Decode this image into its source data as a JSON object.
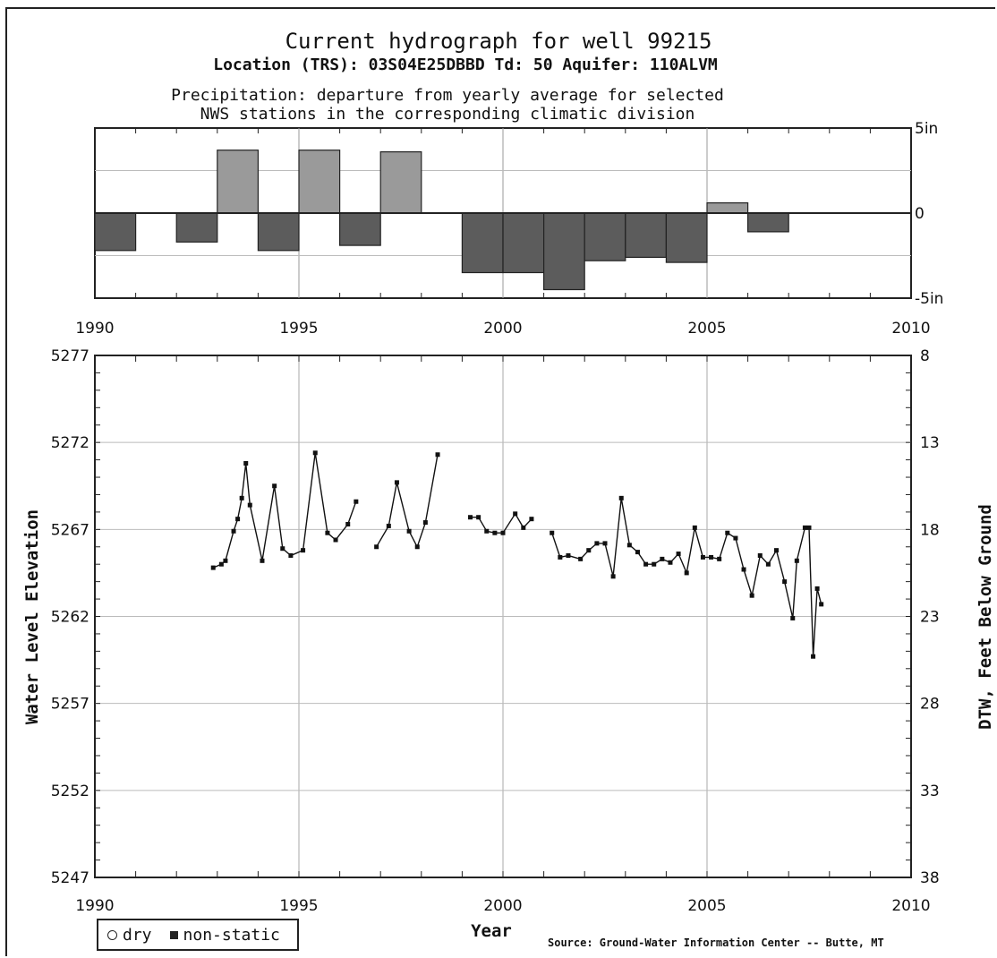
{
  "header": {
    "title": "Current hydrograph for well 99215",
    "subtitle": "Location (TRS): 03S04E25DBBD Td: 50 Aquifer: 110ALVM",
    "precip_line1": "Precipitation: departure from yearly average for selected",
    "precip_line2": "NWS stations in the corresponding climatic division"
  },
  "legend": {
    "dry": "dry",
    "nonstatic": "non-static"
  },
  "source": "Source: Ground-Water Information Center -- Butte, MT",
  "chart_data": [
    {
      "type": "bar",
      "x_ticks": [
        "1990",
        "1995",
        "2000",
        "2005",
        "2010"
      ],
      "y_ticks": [
        "5in",
        "0",
        "-5in"
      ],
      "ylim": [
        -5,
        5
      ],
      "xlim": [
        1990,
        2010
      ],
      "grid": true,
      "bars": [
        {
          "year": 1990,
          "value": -2.2
        },
        {
          "year": 1992,
          "value": -1.7
        },
        {
          "year": 1993,
          "value": 3.7
        },
        {
          "year": 1994,
          "value": -2.2
        },
        {
          "year": 1995,
          "value": 3.7
        },
        {
          "year": 1996,
          "value": -1.9
        },
        {
          "year": 1997,
          "value": 3.6
        },
        {
          "year": 1999,
          "value": -3.5
        },
        {
          "year": 2000,
          "value": -3.5
        },
        {
          "year": 2001,
          "value": -4.5
        },
        {
          "year": 2002,
          "value": -2.8
        },
        {
          "year": 2003,
          "value": -2.6
        },
        {
          "year": 2004,
          "value": -2.9
        },
        {
          "year": 2005,
          "value": 0.6
        },
        {
          "year": 2006,
          "value": -1.1
        }
      ]
    },
    {
      "type": "line",
      "xlabel": "Year",
      "ylabel": "Water Level Elevation",
      "y2label": "DTW, Feet Below Ground",
      "x_ticks": [
        "1990",
        "1995",
        "2000",
        "2005",
        "2010"
      ],
      "y_ticks": [
        "5277",
        "5272",
        "5267",
        "5262",
        "5257",
        "5252",
        "5247"
      ],
      "y2_ticks": [
        "8",
        "13",
        "18",
        "23",
        "28",
        "33",
        "38"
      ],
      "xlim": [
        1990,
        2010
      ],
      "ylim": [
        5247,
        5277
      ],
      "grid": true,
      "series": [
        {
          "segment": 1,
          "points": [
            [
              1992.9,
              5264.8
            ],
            [
              1993.1,
              5265.0
            ],
            [
              1993.2,
              5265.2
            ],
            [
              1993.4,
              5266.9
            ],
            [
              1993.5,
              5267.6
            ],
            [
              1993.6,
              5268.8
            ],
            [
              1993.7,
              5270.8
            ],
            [
              1993.8,
              5268.4
            ],
            [
              1994.1,
              5265.2
            ],
            [
              1994.4,
              5269.5
            ],
            [
              1994.6,
              5265.9
            ],
            [
              1994.8,
              5265.5
            ],
            [
              1995.1,
              5265.8
            ],
            [
              1995.4,
              5271.4
            ],
            [
              1995.7,
              5266.8
            ],
            [
              1995.9,
              5266.4
            ],
            [
              1996.2,
              5267.3
            ],
            [
              1996.4,
              5268.6
            ]
          ]
        },
        {
          "segment": 2,
          "points": [
            [
              1996.9,
              5266.0
            ],
            [
              1997.2,
              5267.2
            ],
            [
              1997.4,
              5269.7
            ],
            [
              1997.7,
              5266.9
            ],
            [
              1997.9,
              5266.0
            ],
            [
              1998.1,
              5267.4
            ],
            [
              1998.4,
              5271.3
            ]
          ]
        },
        {
          "segment": 3,
          "points": [
            [
              1999.2,
              5267.7
            ],
            [
              1999.4,
              5267.7
            ],
            [
              1999.6,
              5266.9
            ],
            [
              1999.8,
              5266.8
            ],
            [
              2000.0,
              5266.8
            ],
            [
              2000.3,
              5267.9
            ],
            [
              2000.5,
              5267.1
            ],
            [
              2000.7,
              5267.6
            ]
          ]
        },
        {
          "segment": 4,
          "points": [
            [
              2001.2,
              5266.8
            ],
            [
              2001.4,
              5265.4
            ],
            [
              2001.6,
              5265.5
            ],
            [
              2001.9,
              5265.3
            ],
            [
              2002.1,
              5265.8
            ],
            [
              2002.3,
              5266.2
            ],
            [
              2002.5,
              5266.2
            ],
            [
              2002.7,
              5264.3
            ],
            [
              2002.9,
              5268.8
            ],
            [
              2003.1,
              5266.1
            ],
            [
              2003.3,
              5265.7
            ],
            [
              2003.5,
              5265.0
            ],
            [
              2003.7,
              5265.0
            ],
            [
              2003.9,
              5265.3
            ],
            [
              2004.1,
              5265.1
            ],
            [
              2004.3,
              5265.6
            ],
            [
              2004.5,
              5264.5
            ],
            [
              2004.7,
              5267.1
            ],
            [
              2004.9,
              5265.4
            ],
            [
              2005.1,
              5265.4
            ],
            [
              2005.3,
              5265.3
            ],
            [
              2005.5,
              5266.8
            ],
            [
              2005.7,
              5266.5
            ],
            [
              2005.9,
              5264.7
            ],
            [
              2006.1,
              5263.2
            ],
            [
              2006.3,
              5265.5
            ],
            [
              2006.5,
              5265.0
            ],
            [
              2006.7,
              5265.8
            ],
            [
              2006.9,
              5264.0
            ],
            [
              2007.1,
              5261.9
            ],
            [
              2007.2,
              5265.2
            ],
            [
              2007.4,
              5267.1
            ],
            [
              2007.5,
              5267.1
            ],
            [
              2007.6,
              5259.7
            ],
            [
              2007.7,
              5263.6
            ],
            [
              2007.8,
              5262.7
            ]
          ]
        }
      ]
    }
  ]
}
